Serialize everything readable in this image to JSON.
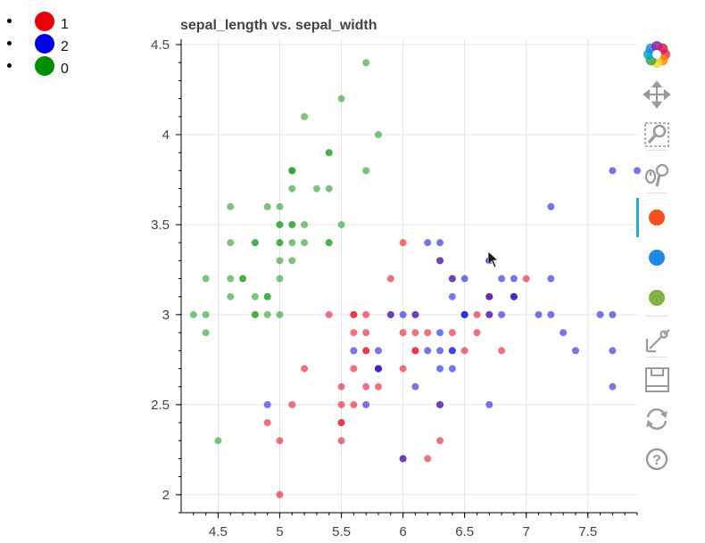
{
  "legend": {
    "items": [
      {
        "label": "1",
        "color": "#e8000b"
      },
      {
        "label": "2",
        "color": "#0000e6"
      },
      {
        "label": "0",
        "color": "#008f00"
      }
    ]
  },
  "toolbar": {
    "tools": [
      {
        "name": "bokeh-logo-icon"
      },
      {
        "name": "pan-tool-icon"
      },
      {
        "name": "box-zoom-tool-icon"
      },
      {
        "name": "wheel-zoom-tool-icon"
      },
      {
        "name": "red-lasso-tool-icon",
        "color": "#f4511e"
      },
      {
        "name": "blue-lasso-tool-icon",
        "color": "#1e88e5"
      },
      {
        "name": "green-lasso-tool-icon",
        "color": "#7cb342"
      },
      {
        "name": "hover-tool-icon"
      },
      {
        "name": "save-tool-icon"
      },
      {
        "name": "reset-tool-icon"
      },
      {
        "name": "help-tool-icon"
      }
    ]
  },
  "chart_data": {
    "type": "scatter",
    "title": "sepal_length vs. sepal_width",
    "xlabel": "",
    "ylabel": "",
    "xlim": [
      4.2,
      7.9
    ],
    "ylim": [
      1.9,
      4.53
    ],
    "x_ticks": [
      4.5,
      5,
      5.5,
      6,
      6.5,
      7,
      7.5
    ],
    "x_tick_labels": [
      "4.5",
      "5",
      "5.5",
      "6",
      "6.5",
      "7",
      "7.5"
    ],
    "y_ticks": [
      2,
      2.5,
      3,
      3.5,
      4,
      4.5
    ],
    "y_tick_labels": [
      "2",
      "2.5",
      "3",
      "3.5",
      "4",
      "4.5"
    ],
    "grid": true,
    "series": [
      {
        "name": "0",
        "color": "#2ca02c",
        "points": [
          [
            5.1,
            3.5
          ],
          [
            4.9,
            3.0
          ],
          [
            4.7,
            3.2
          ],
          [
            4.6,
            3.1
          ],
          [
            5.0,
            3.6
          ],
          [
            5.4,
            3.9
          ],
          [
            4.6,
            3.4
          ],
          [
            5.0,
            3.4
          ],
          [
            4.4,
            2.9
          ],
          [
            4.9,
            3.1
          ],
          [
            5.4,
            3.7
          ],
          [
            4.8,
            3.4
          ],
          [
            4.8,
            3.0
          ],
          [
            4.3,
            3.0
          ],
          [
            5.8,
            4.0
          ],
          [
            5.7,
            4.4
          ],
          [
            5.4,
            3.9
          ],
          [
            5.1,
            3.5
          ],
          [
            5.7,
            3.8
          ],
          [
            5.1,
            3.8
          ],
          [
            5.4,
            3.4
          ],
          [
            5.1,
            3.7
          ],
          [
            4.6,
            3.6
          ],
          [
            5.1,
            3.3
          ],
          [
            4.8,
            3.4
          ],
          [
            5.0,
            3.0
          ],
          [
            5.0,
            3.4
          ],
          [
            5.2,
            3.5
          ],
          [
            5.2,
            3.4
          ],
          [
            4.7,
            3.2
          ],
          [
            4.8,
            3.1
          ],
          [
            5.4,
            3.4
          ],
          [
            5.2,
            4.1
          ],
          [
            5.5,
            4.2
          ],
          [
            4.9,
            3.1
          ],
          [
            5.0,
            3.2
          ],
          [
            5.5,
            3.5
          ],
          [
            4.9,
            3.6
          ],
          [
            4.4,
            3.0
          ],
          [
            5.1,
            3.4
          ],
          [
            5.0,
            3.5
          ],
          [
            4.5,
            2.3
          ],
          [
            4.4,
            3.2
          ],
          [
            5.0,
            3.5
          ],
          [
            5.1,
            3.8
          ],
          [
            4.8,
            3.0
          ],
          [
            5.1,
            3.8
          ],
          [
            4.6,
            3.2
          ],
          [
            5.3,
            3.7
          ],
          [
            5.0,
            3.3
          ]
        ]
      },
      {
        "name": "1",
        "color": "#e31a2e",
        "points": [
          [
            7.0,
            3.2
          ],
          [
            6.4,
            3.2
          ],
          [
            6.9,
            3.1
          ],
          [
            5.5,
            2.3
          ],
          [
            6.5,
            2.8
          ],
          [
            5.7,
            2.8
          ],
          [
            6.3,
            3.3
          ],
          [
            4.9,
            2.4
          ],
          [
            6.6,
            2.9
          ],
          [
            5.2,
            2.7
          ],
          [
            5.0,
            2.0
          ],
          [
            5.9,
            3.0
          ],
          [
            6.0,
            2.2
          ],
          [
            6.1,
            2.9
          ],
          [
            5.6,
            2.9
          ],
          [
            6.7,
            3.1
          ],
          [
            5.6,
            3.0
          ],
          [
            5.8,
            2.7
          ],
          [
            6.2,
            2.2
          ],
          [
            5.6,
            2.5
          ],
          [
            5.9,
            3.2
          ],
          [
            6.1,
            2.8
          ],
          [
            6.3,
            2.5
          ],
          [
            6.1,
            2.8
          ],
          [
            6.4,
            2.9
          ],
          [
            6.6,
            3.0
          ],
          [
            6.8,
            2.8
          ],
          [
            6.7,
            3.0
          ],
          [
            6.0,
            2.9
          ],
          [
            5.7,
            2.6
          ],
          [
            5.5,
            2.4
          ],
          [
            5.5,
            2.4
          ],
          [
            5.8,
            2.7
          ],
          [
            6.0,
            2.7
          ],
          [
            5.4,
            3.0
          ],
          [
            6.0,
            3.4
          ],
          [
            6.7,
            3.1
          ],
          [
            6.3,
            2.3
          ],
          [
            5.6,
            3.0
          ],
          [
            5.5,
            2.5
          ],
          [
            5.5,
            2.6
          ],
          [
            6.1,
            3.0
          ],
          [
            5.8,
            2.6
          ],
          [
            5.0,
            2.3
          ],
          [
            5.6,
            2.7
          ],
          [
            5.7,
            3.0
          ],
          [
            5.7,
            2.9
          ],
          [
            6.2,
            2.9
          ],
          [
            5.1,
            2.5
          ],
          [
            5.7,
            2.8
          ]
        ]
      },
      {
        "name": "2",
        "color": "#2222dd",
        "points": [
          [
            6.3,
            3.3
          ],
          [
            5.8,
            2.7
          ],
          [
            7.1,
            3.0
          ],
          [
            6.3,
            2.9
          ],
          [
            6.5,
            3.0
          ],
          [
            7.6,
            3.0
          ],
          [
            4.9,
            2.5
          ],
          [
            7.3,
            2.9
          ],
          [
            6.7,
            2.5
          ],
          [
            7.2,
            3.6
          ],
          [
            6.5,
            3.2
          ],
          [
            6.4,
            2.7
          ],
          [
            6.8,
            3.0
          ],
          [
            5.7,
            2.5
          ],
          [
            5.8,
            2.8
          ],
          [
            6.4,
            3.2
          ],
          [
            6.5,
            3.0
          ],
          [
            7.7,
            3.8
          ],
          [
            7.7,
            2.6
          ],
          [
            6.0,
            2.2
          ],
          [
            6.9,
            3.2
          ],
          [
            5.6,
            2.8
          ],
          [
            7.7,
            2.8
          ],
          [
            6.3,
            2.7
          ],
          [
            6.7,
            3.3
          ],
          [
            7.2,
            3.2
          ],
          [
            6.2,
            2.8
          ],
          [
            6.1,
            3.0
          ],
          [
            6.4,
            2.8
          ],
          [
            7.2,
            3.0
          ],
          [
            7.4,
            2.8
          ],
          [
            7.9,
            3.8
          ],
          [
            6.4,
            2.8
          ],
          [
            6.3,
            2.8
          ],
          [
            6.1,
            2.6
          ],
          [
            7.7,
            3.0
          ],
          [
            6.3,
            3.4
          ],
          [
            6.4,
            3.1
          ],
          [
            6.0,
            3.0
          ],
          [
            6.9,
            3.1
          ],
          [
            6.7,
            3.1
          ],
          [
            6.9,
            3.1
          ],
          [
            5.8,
            2.7
          ],
          [
            6.8,
            3.2
          ],
          [
            6.7,
            3.3
          ],
          [
            6.7,
            3.0
          ],
          [
            6.3,
            2.5
          ],
          [
            6.5,
            3.0
          ],
          [
            6.2,
            3.4
          ],
          [
            5.9,
            3.0
          ]
        ]
      }
    ]
  }
}
